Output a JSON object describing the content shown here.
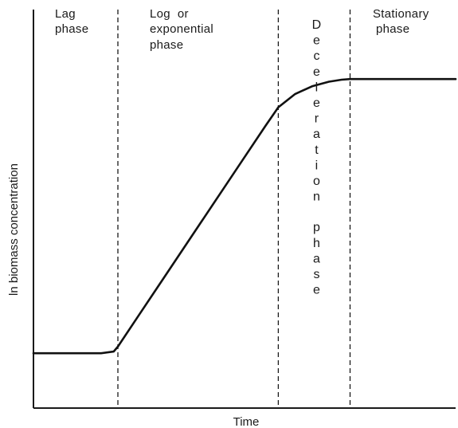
{
  "chart_data": {
    "type": "line",
    "title": "",
    "xlabel": "Time",
    "ylabel": "ln biomass concentration",
    "grid": false,
    "legend": "none",
    "phases": [
      {
        "name": "lag",
        "label_lines": [
          "Lag",
          "phase"
        ]
      },
      {
        "name": "log",
        "label_lines": [
          "Log  or",
          "exponential",
          "phase"
        ]
      },
      {
        "name": "deceleration",
        "label_vertical": "Deceleration phase"
      },
      {
        "name": "stationary",
        "label_lines": [
          "Stationary",
          "phase"
        ]
      }
    ],
    "phase_boundaries_x": [
      0.2,
      0.58,
      0.75
    ],
    "xlim": [
      0,
      1
    ],
    "ylim": [
      0,
      1
    ],
    "curve": {
      "x": [
        0.0,
        0.16,
        0.19,
        0.2,
        0.25,
        0.3,
        0.35,
        0.4,
        0.45,
        0.5,
        0.55,
        0.58,
        0.62,
        0.66,
        0.7,
        0.73,
        0.75,
        0.8,
        0.9,
        1.0
      ],
      "y": [
        0.165,
        0.165,
        0.17,
        0.185,
        0.28,
        0.375,
        0.47,
        0.565,
        0.66,
        0.755,
        0.85,
        0.905,
        0.945,
        0.968,
        0.982,
        0.988,
        0.99,
        0.99,
        0.99,
        0.99
      ]
    }
  },
  "colors": {
    "line": "#111111",
    "background": "#ffffff"
  }
}
